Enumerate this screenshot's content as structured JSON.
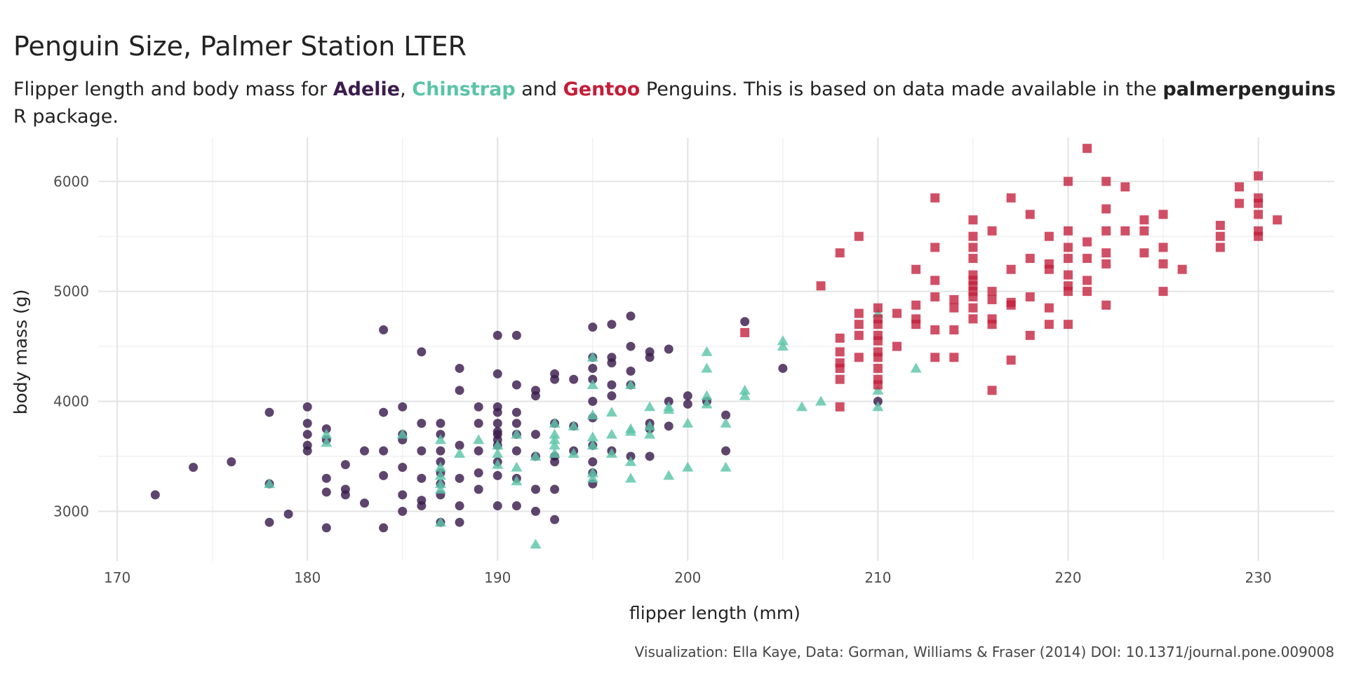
{
  "title": "Penguin Size, Palmer Station LTER",
  "subtitle": {
    "line1_prefix": "Flipper length and body mass for ",
    "adelie": "Adelie",
    "comma": ", ",
    "chinstrap": "Chinstrap",
    "and": " and ",
    "gentoo": "Gentoo",
    "line1_suffix": " Penguins. This is based on data made available in the ",
    "package": "palmerpenguins",
    "line2": "R package."
  },
  "caption": "Visualization: Ella Kaye, Data: Gorman, Williams & Fraser (2014) DOI: 10.1371/journal.pone.009008",
  "colors": {
    "Adelie": "#3b1c4d",
    "Chinstrap": "#5bc4a8",
    "Gentoo": "#c41e3a"
  },
  "chart_data": {
    "type": "scatter",
    "xlabel": "flipper length (mm)",
    "ylabel": "body mass (g)",
    "xlim": [
      169,
      234
    ],
    "ylim": [
      2550,
      6400
    ],
    "xticks": [
      170,
      180,
      190,
      200,
      210,
      220,
      230
    ],
    "yticks": [
      3000,
      4000,
      5000,
      6000
    ],
    "grid": true,
    "series": [
      {
        "name": "Adelie",
        "marker": "circle",
        "points": [
          [
            172,
            3150
          ],
          [
            174,
            3400
          ],
          [
            176,
            3450
          ],
          [
            178,
            3900
          ],
          [
            178,
            3250
          ],
          [
            178,
            2900
          ],
          [
            179,
            2975
          ],
          [
            180,
            3950
          ],
          [
            180,
            3800
          ],
          [
            180,
            3700
          ],
          [
            180,
            3600
          ],
          [
            180,
            3550
          ],
          [
            181,
            3750
          ],
          [
            181,
            3650
          ],
          [
            181,
            3300
          ],
          [
            181,
            3175
          ],
          [
            181,
            2850
          ],
          [
            182,
            3425
          ],
          [
            182,
            3200
          ],
          [
            182,
            3150
          ],
          [
            183,
            3550
          ],
          [
            183,
            3075
          ],
          [
            184,
            4650
          ],
          [
            184,
            3900
          ],
          [
            184,
            3550
          ],
          [
            184,
            3325
          ],
          [
            184,
            2850
          ],
          [
            185,
            3950
          ],
          [
            185,
            3700
          ],
          [
            185,
            3650
          ],
          [
            185,
            3400
          ],
          [
            185,
            3150
          ],
          [
            185,
            3000
          ],
          [
            186,
            4450
          ],
          [
            186,
            3800
          ],
          [
            186,
            3550
          ],
          [
            186,
            3300
          ],
          [
            186,
            3100
          ],
          [
            186,
            3050
          ],
          [
            187,
            3800
          ],
          [
            187,
            3700
          ],
          [
            187,
            3550
          ],
          [
            187,
            3450
          ],
          [
            187,
            3350
          ],
          [
            187,
            3250
          ],
          [
            187,
            3150
          ],
          [
            187,
            2900
          ],
          [
            188,
            4300
          ],
          [
            188,
            4100
          ],
          [
            188,
            3600
          ],
          [
            188,
            3300
          ],
          [
            188,
            3050
          ],
          [
            188,
            2900
          ],
          [
            189,
            3950
          ],
          [
            189,
            3800
          ],
          [
            189,
            3550
          ],
          [
            189,
            3350
          ],
          [
            189,
            3200
          ],
          [
            190,
            4600
          ],
          [
            190,
            4250
          ],
          [
            190,
            3950
          ],
          [
            190,
            3900
          ],
          [
            190,
            3800
          ],
          [
            190,
            3725
          ],
          [
            190,
            3700
          ],
          [
            190,
            3650
          ],
          [
            190,
            3600
          ],
          [
            190,
            3450
          ],
          [
            190,
            3325
          ],
          [
            190,
            3050
          ],
          [
            191,
            4600
          ],
          [
            191,
            4150
          ],
          [
            191,
            3900
          ],
          [
            191,
            3800
          ],
          [
            191,
            3700
          ],
          [
            191,
            3550
          ],
          [
            191,
            3300
          ],
          [
            191,
            3050
          ],
          [
            192,
            4100
          ],
          [
            192,
            4050
          ],
          [
            192,
            3700
          ],
          [
            192,
            3500
          ],
          [
            192,
            3200
          ],
          [
            192,
            3000
          ],
          [
            193,
            4250
          ],
          [
            193,
            4200
          ],
          [
            193,
            3800
          ],
          [
            193,
            3500
          ],
          [
            193,
            3450
          ],
          [
            193,
            3200
          ],
          [
            193,
            2925
          ],
          [
            194,
            4200
          ],
          [
            194,
            3550
          ],
          [
            194,
            3775
          ],
          [
            195,
            4675
          ],
          [
            195,
            4400
          ],
          [
            195,
            4300
          ],
          [
            195,
            4200
          ],
          [
            195,
            4000
          ],
          [
            195,
            3850
          ],
          [
            195,
            3600
          ],
          [
            195,
            3450
          ],
          [
            195,
            3350
          ],
          [
            195,
            3250
          ],
          [
            196,
            4700
          ],
          [
            196,
            4400
          ],
          [
            196,
            4350
          ],
          [
            196,
            4150
          ],
          [
            196,
            4050
          ],
          [
            196,
            3550
          ],
          [
            197,
            4775
          ],
          [
            197,
            4500
          ],
          [
            197,
            4275
          ],
          [
            197,
            4150
          ],
          [
            197,
            3500
          ],
          [
            198,
            4450
          ],
          [
            198,
            4400
          ],
          [
            198,
            3800
          ],
          [
            198,
            3750
          ],
          [
            198,
            3500
          ],
          [
            199,
            4475
          ],
          [
            199,
            4000
          ],
          [
            199,
            3775
          ],
          [
            200,
            4050
          ],
          [
            200,
            3975
          ],
          [
            201,
            4000
          ],
          [
            202,
            3875
          ],
          [
            202,
            3550
          ],
          [
            203,
            4725
          ],
          [
            205,
            4300
          ],
          [
            210,
            4000
          ]
        ]
      },
      {
        "name": "Chinstrap",
        "marker": "triangle",
        "points": [
          [
            178,
            3250
          ],
          [
            181,
            3700
          ],
          [
            181,
            3625
          ],
          [
            185,
            3700
          ],
          [
            187,
            3650
          ],
          [
            187,
            3400
          ],
          [
            187,
            3325
          ],
          [
            187,
            3250
          ],
          [
            187,
            3200
          ],
          [
            187,
            2900
          ],
          [
            188,
            3525
          ],
          [
            189,
            3650
          ],
          [
            190,
            3600
          ],
          [
            190,
            3525
          ],
          [
            190,
            3425
          ],
          [
            191,
            3700
          ],
          [
            191,
            3400
          ],
          [
            191,
            3275
          ],
          [
            192,
            3500
          ],
          [
            192,
            2700
          ],
          [
            193,
            3800
          ],
          [
            193,
            3700
          ],
          [
            193,
            3650
          ],
          [
            193,
            3600
          ],
          [
            193,
            3525
          ],
          [
            194,
            3775
          ],
          [
            194,
            3525
          ],
          [
            195,
            4400
          ],
          [
            195,
            4150
          ],
          [
            195,
            3875
          ],
          [
            195,
            3675
          ],
          [
            195,
            3600
          ],
          [
            195,
            3350
          ],
          [
            195,
            3300
          ],
          [
            196,
            3900
          ],
          [
            196,
            3700
          ],
          [
            196,
            3525
          ],
          [
            197,
            4150
          ],
          [
            197,
            3750
          ],
          [
            197,
            3725
          ],
          [
            197,
            3450
          ],
          [
            197,
            3300
          ],
          [
            198,
            3950
          ],
          [
            198,
            3775
          ],
          [
            198,
            3700
          ],
          [
            199,
            3950
          ],
          [
            199,
            3925
          ],
          [
            199,
            3325
          ],
          [
            200,
            3800
          ],
          [
            200,
            3400
          ],
          [
            201,
            4450
          ],
          [
            201,
            4300
          ],
          [
            201,
            4050
          ],
          [
            201,
            3975
          ],
          [
            202,
            3800
          ],
          [
            202,
            3400
          ],
          [
            203,
            4100
          ],
          [
            203,
            4050
          ],
          [
            205,
            4550
          ],
          [
            205,
            4500
          ],
          [
            206,
            3950
          ],
          [
            207,
            4000
          ],
          [
            210,
            4800
          ],
          [
            210,
            4100
          ],
          [
            210,
            3950
          ],
          [
            212,
            4300
          ]
        ]
      },
      {
        "name": "Gentoo",
        "marker": "square",
        "points": [
          [
            203,
            4625
          ],
          [
            207,
            5050
          ],
          [
            208,
            5350
          ],
          [
            208,
            4575
          ],
          [
            208,
            4450
          ],
          [
            208,
            4350
          ],
          [
            208,
            4300
          ],
          [
            208,
            4200
          ],
          [
            208,
            3950
          ],
          [
            209,
            5500
          ],
          [
            209,
            4800
          ],
          [
            209,
            4700
          ],
          [
            209,
            4600
          ],
          [
            209,
            4400
          ],
          [
            210,
            4850
          ],
          [
            210,
            4750
          ],
          [
            210,
            4700
          ],
          [
            210,
            4600
          ],
          [
            210,
            4550
          ],
          [
            210,
            4450
          ],
          [
            210,
            4400
          ],
          [
            210,
            4300
          ],
          [
            210,
            4200
          ],
          [
            210,
            4150
          ],
          [
            211,
            4800
          ],
          [
            211,
            4500
          ],
          [
            212,
            5200
          ],
          [
            212,
            4875
          ],
          [
            212,
            4750
          ],
          [
            212,
            4700
          ],
          [
            213,
            5850
          ],
          [
            213,
            5400
          ],
          [
            213,
            5100
          ],
          [
            213,
            4950
          ],
          [
            213,
            4650
          ],
          [
            213,
            4400
          ],
          [
            214,
            4925
          ],
          [
            214,
            4850
          ],
          [
            214,
            4650
          ],
          [
            214,
            4400
          ],
          [
            215,
            5650
          ],
          [
            215,
            5500
          ],
          [
            215,
            5400
          ],
          [
            215,
            5300
          ],
          [
            215,
            5150
          ],
          [
            215,
            5100
          ],
          [
            215,
            5050
          ],
          [
            215,
            5000
          ],
          [
            215,
            4950
          ],
          [
            215,
            4850
          ],
          [
            215,
            4750
          ],
          [
            216,
            5550
          ],
          [
            216,
            5000
          ],
          [
            216,
            4925
          ],
          [
            216,
            4750
          ],
          [
            216,
            4700
          ],
          [
            216,
            4100
          ],
          [
            217,
            5850
          ],
          [
            217,
            5200
          ],
          [
            217,
            4900
          ],
          [
            217,
            4875
          ],
          [
            217,
            4375
          ],
          [
            218,
            5700
          ],
          [
            218,
            5300
          ],
          [
            218,
            4950
          ],
          [
            218,
            4600
          ],
          [
            219,
            5500
          ],
          [
            219,
            5250
          ],
          [
            219,
            5200
          ],
          [
            219,
            4850
          ],
          [
            219,
            4700
          ],
          [
            220,
            6000
          ],
          [
            220,
            5550
          ],
          [
            220,
            5400
          ],
          [
            220,
            5300
          ],
          [
            220,
            5150
          ],
          [
            220,
            5050
          ],
          [
            220,
            5000
          ],
          [
            220,
            4700
          ],
          [
            221,
            6300
          ],
          [
            221,
            5450
          ],
          [
            221,
            5300
          ],
          [
            221,
            5100
          ],
          [
            221,
            5000
          ],
          [
            222,
            6000
          ],
          [
            222,
            5750
          ],
          [
            222,
            5550
          ],
          [
            222,
            5350
          ],
          [
            222,
            5250
          ],
          [
            222,
            4875
          ],
          [
            223,
            5950
          ],
          [
            223,
            5550
          ],
          [
            224,
            5650
          ],
          [
            224,
            5550
          ],
          [
            224,
            5350
          ],
          [
            225,
            5700
          ],
          [
            225,
            5400
          ],
          [
            225,
            5250
          ],
          [
            225,
            5000
          ],
          [
            226,
            5200
          ],
          [
            228,
            5600
          ],
          [
            228,
            5500
          ],
          [
            228,
            5400
          ],
          [
            229,
            5950
          ],
          [
            229,
            5800
          ],
          [
            230,
            6050
          ],
          [
            230,
            5850
          ],
          [
            230,
            5800
          ],
          [
            230,
            5700
          ],
          [
            230,
            5550
          ],
          [
            230,
            5500
          ],
          [
            231,
            5650
          ]
        ]
      }
    ]
  }
}
